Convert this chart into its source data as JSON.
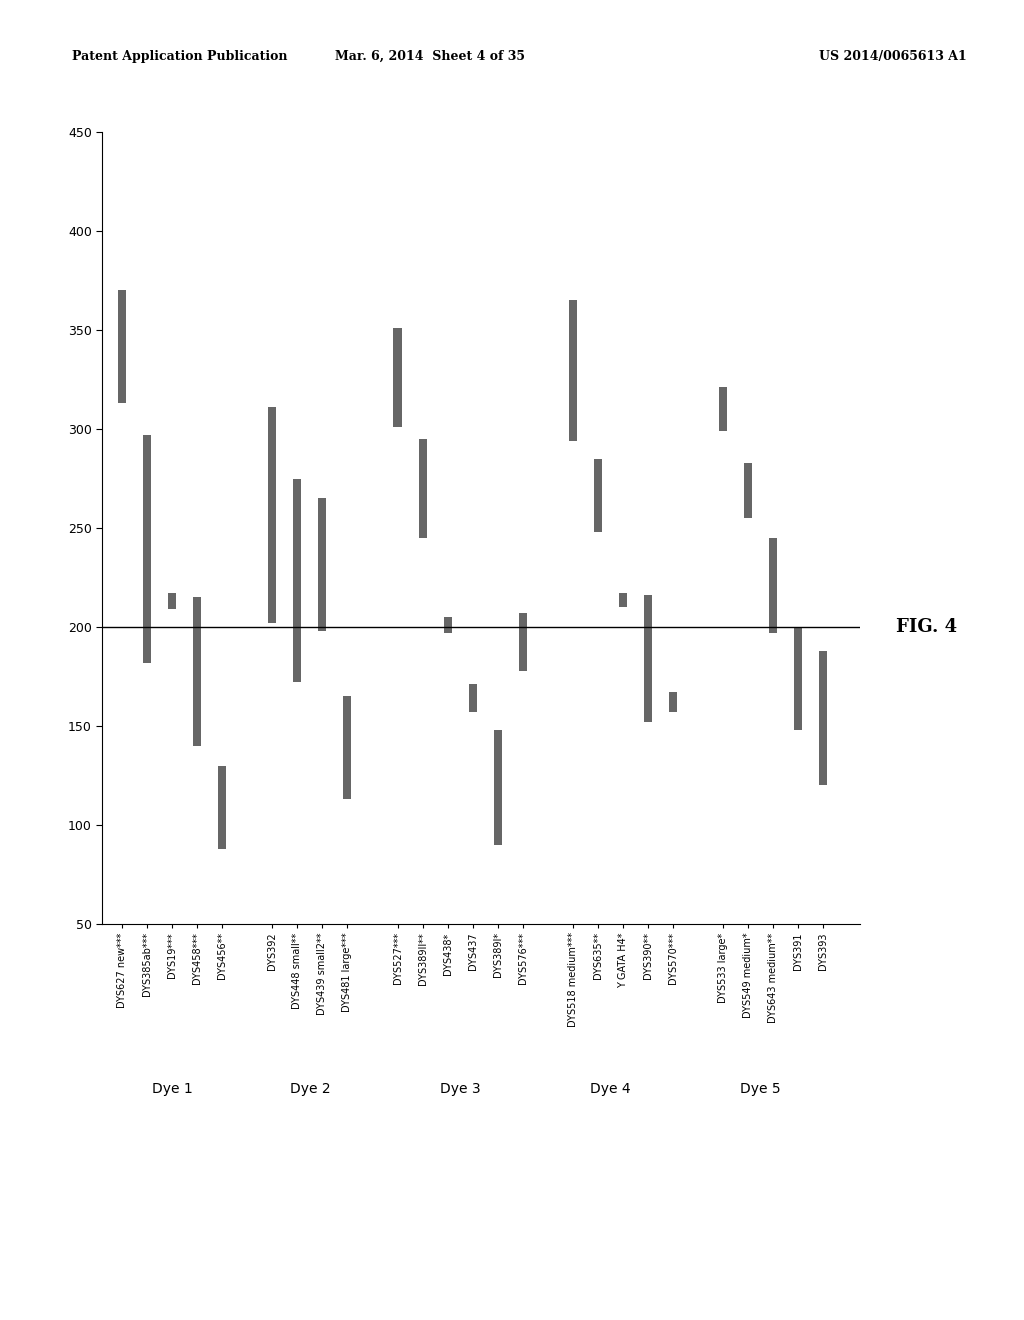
{
  "header_left": "Patent Application Publication",
  "header_center": "Mar. 6, 2014  Sheet 4 of 35",
  "header_right": "US 2014/0065613 A1",
  "fig_label": "FIG. 4",
  "ylim": [
    50,
    450
  ],
  "yticks": [
    50,
    100,
    150,
    200,
    250,
    300,
    350,
    400,
    450
  ],
  "hline_y": 200,
  "background_color": "#ffffff",
  "bar_color": "#666666",
  "bar_width": 0.32,
  "dye_labels": [
    {
      "label": "Dye 1",
      "x": 2.0
    },
    {
      "label": "Dye 2",
      "x": 7.5
    },
    {
      "label": "Dye 3",
      "x": 13.5
    },
    {
      "label": "Dye 4",
      "x": 19.5
    },
    {
      "label": "Dye 5",
      "x": 25.5
    }
  ],
  "markers": [
    {
      "name": "DYS627 new***",
      "x": 0,
      "ymin": 313,
      "ymax": 370
    },
    {
      "name": "DYS385ab***",
      "x": 1,
      "ymin": 182,
      "ymax": 297
    },
    {
      "name": "DYS19***",
      "x": 2,
      "ymin": 209,
      "ymax": 217
    },
    {
      "name": "DYS458***",
      "x": 3,
      "ymin": 140,
      "ymax": 215
    },
    {
      "name": "DYS456**",
      "x": 4,
      "ymin": 88,
      "ymax": 130
    },
    {
      "name": "DYS392",
      "x": 6,
      "ymin": 202,
      "ymax": 311
    },
    {
      "name": "DYS448 small**",
      "x": 7,
      "ymin": 172,
      "ymax": 275
    },
    {
      "name": "DYS439 small2**",
      "x": 8,
      "ymin": 198,
      "ymax": 265
    },
    {
      "name": "DYS481 large***",
      "x": 9,
      "ymin": 113,
      "ymax": 165
    },
    {
      "name": "DYS527***",
      "x": 11,
      "ymin": 301,
      "ymax": 351
    },
    {
      "name": "DYS389II**",
      "x": 12,
      "ymin": 245,
      "ymax": 295
    },
    {
      "name": "DYS438*",
      "x": 13,
      "ymin": 197,
      "ymax": 205
    },
    {
      "name": "DYS437",
      "x": 14,
      "ymin": 157,
      "ymax": 171
    },
    {
      "name": "DYS389I*",
      "x": 15,
      "ymin": 90,
      "ymax": 148
    },
    {
      "name": "DYS576***",
      "x": 16,
      "ymin": 178,
      "ymax": 207
    },
    {
      "name": "DYS518 medium***",
      "x": 18,
      "ymin": 294,
      "ymax": 365
    },
    {
      "name": "DYS635**",
      "x": 19,
      "ymin": 248,
      "ymax": 285
    },
    {
      "name": "Y GATA H4*",
      "x": 20,
      "ymin": 210,
      "ymax": 217
    },
    {
      "name": "DYS390**",
      "x": 21,
      "ymin": 152,
      "ymax": 216
    },
    {
      "name": "DYS570***",
      "x": 22,
      "ymin": 157,
      "ymax": 167
    },
    {
      "name": "DYS533 large*",
      "x": 24,
      "ymin": 299,
      "ymax": 321
    },
    {
      "name": "DYS549 medium*",
      "x": 25,
      "ymin": 255,
      "ymax": 283
    },
    {
      "name": "DYS643 medium**",
      "x": 26,
      "ymin": 197,
      "ymax": 245
    },
    {
      "name": "DYS391",
      "x": 27,
      "ymin": 148,
      "ymax": 200
    },
    {
      "name": "DYS393",
      "x": 28,
      "ymin": 120,
      "ymax": 188
    }
  ],
  "xlim": [
    -0.8,
    29.5
  ]
}
